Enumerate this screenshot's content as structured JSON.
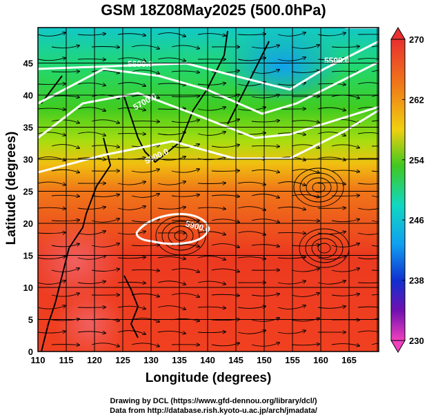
{
  "title": "GSM 18Z08May2025 (500.0hPa)",
  "xaxis": {
    "label": "Longitude (degrees)",
    "ticks": [
      "110",
      "115",
      "120",
      "125",
      "130",
      "135",
      "140",
      "145",
      "150",
      "155",
      "160",
      "165"
    ]
  },
  "yaxis": {
    "label": "Latitude  (degrees)",
    "ticks": [
      "0",
      "5",
      "10",
      "15",
      "20",
      "25",
      "30",
      "35",
      "40",
      "45"
    ]
  },
  "colorbar": {
    "ticks": [
      "270",
      "262",
      "254",
      "246",
      "238",
      "230"
    ],
    "range": [
      230,
      270
    ]
  },
  "contour_labels": [
    "5500.0",
    "5600.0",
    "5700.0",
    "5800.0",
    "5900.0"
  ],
  "credits": [
    "Drawing by DCL (https://www.gfd-dennou.org/library/dcl/)",
    "Data from http://database.rish.kyoto-u.ac.jp/arch/jmadata/"
  ]
}
